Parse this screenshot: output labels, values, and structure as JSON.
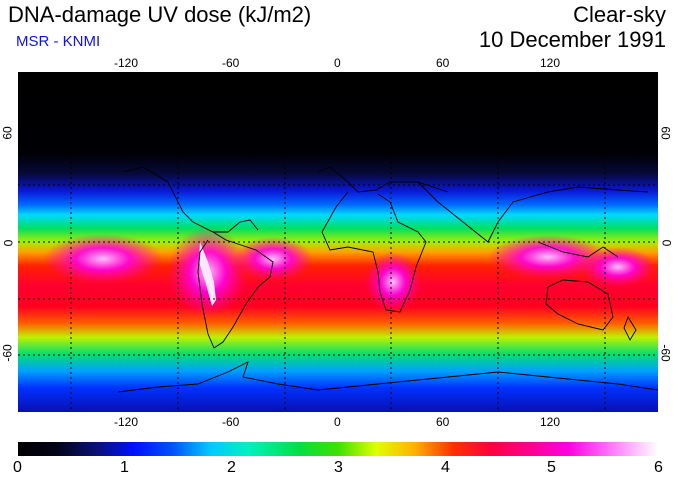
{
  "header": {
    "title": "DNA-damage UV dose (kJ/m2)",
    "subtitle": "MSR - KNMI",
    "mode": "Clear-sky",
    "date": "10 December 1991"
  },
  "map": {
    "lon_ticks": [
      "-120",
      "-60",
      "0",
      "60",
      "120"
    ],
    "lat_left": [
      "60",
      "0",
      "-60"
    ],
    "lat_right": [
      "60",
      "0",
      "-60"
    ]
  },
  "scale": {
    "values": [
      "0",
      "1",
      "2",
      "3",
      "4",
      "5",
      "6"
    ]
  },
  "colors": {
    "subtitle": "#1111ee",
    "polar": "#000000",
    "tropics": "#ff0000",
    "peak": "#ff00e0"
  }
}
